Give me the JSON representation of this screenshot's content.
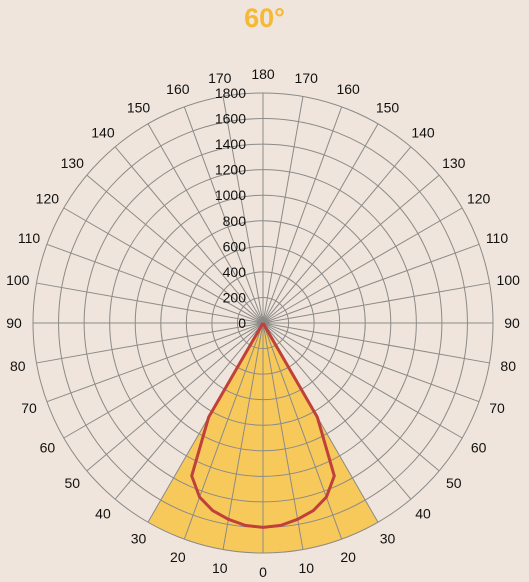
{
  "title": "60°",
  "colors": {
    "background": "#efe5dc",
    "title": "#f5b935",
    "grid": "#8c8a88",
    "beam_fill": "#f7c95a",
    "curve": "#c0403a"
  },
  "chart_data": {
    "type": "polar-line",
    "title": "60°",
    "radial_axis": {
      "min": 0,
      "max": 1800,
      "step": 200,
      "tick_labels": [
        "0",
        "200",
        "400",
        "600",
        "800",
        "1000",
        "1200",
        "1400",
        "1600",
        "1800"
      ]
    },
    "angular_axis": {
      "step_deg": 10,
      "left_labels": [
        "170",
        "160",
        "150",
        "140",
        "130",
        "120",
        "110",
        "100",
        "90",
        "80",
        "70",
        "60",
        "50",
        "40",
        "30",
        "20",
        "10"
      ],
      "right_labels": [
        "170",
        "160",
        "150",
        "140",
        "130",
        "120",
        "110",
        "100",
        "90",
        "80",
        "70",
        "60",
        "50",
        "40",
        "30",
        "20",
        "10"
      ],
      "top_label": "180",
      "bottom_label": "0"
    },
    "beam_angle_deg": 60,
    "beam_radius": 1800,
    "series": [
      {
        "angles": [
          0,
          5,
          10,
          15,
          20,
          25,
          30,
          35
        ],
        "values": [
          1600,
          1590,
          1560,
          1520,
          1450,
          1320,
          850,
          0
        ]
      }
    ]
  }
}
